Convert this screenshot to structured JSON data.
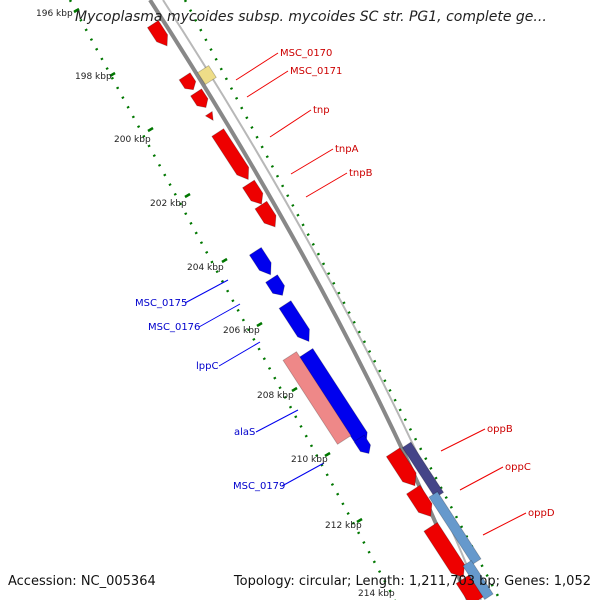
{
  "title": "Mycoplasma mycoides subsp. mycoides SC str. PG1, complete ge...",
  "accession": "Accession: NC_005364",
  "summary": "Topology: circular; Length: 1,211,703 bp; Genes: 1,052",
  "colors": {
    "forward": "#ee0000",
    "reverse": "#0000ee",
    "rna_pink": "#ee8888",
    "pale_yellow": "#eedd88",
    "backbone": "#888888",
    "tick": "#007700",
    "forward_label": "#cc0000",
    "reverse_label": "#0000cc",
    "extra_dark": "#444488",
    "extra_light": "#6699cc"
  },
  "scale_labels": [
    "196 kbp",
    "198 kbp",
    "200 kbp",
    "202 kbp",
    "204 kbp",
    "206 kbp",
    "208 kbp",
    "210 kbp",
    "212 kbp",
    "214 kbp"
  ],
  "forward_gene_labels": [
    "MSC_0170",
    "MSC_0171",
    "tnp",
    "tnpA",
    "tnpB",
    "oppB",
    "oppC",
    "oppD"
  ],
  "reverse_gene_labels": [
    "MSC_0175",
    "MSC_0176",
    "lppC",
    "alaS",
    "MSC_0179"
  ]
}
